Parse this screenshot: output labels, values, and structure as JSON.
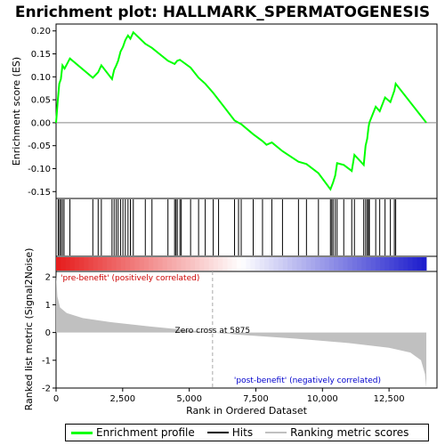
{
  "chart_data": {
    "type": "line",
    "title": "Enrichment plot: HALLMARK_SPERMATOGENESIS",
    "es_panel": {
      "ylabel": "Enrichment score (ES)",
      "ylim": [
        -0.165,
        0.215
      ],
      "yticks": [
        -0.15,
        -0.1,
        -0.05,
        0.0,
        0.05,
        0.1,
        0.15,
        0.2
      ],
      "ytick_labels": [
        "-0.15",
        "-0.10",
        "-0.05",
        "0.00",
        "0.05",
        "0.10",
        "0.15",
        "0.20"
      ],
      "series": [
        {
          "name": "Enrichment profile",
          "color": "#00ff00",
          "x": [
            0,
            60,
            120,
            180,
            240,
            320,
            520,
            1380,
            1580,
            1700,
            2100,
            2180,
            2260,
            2330,
            2420,
            2510,
            2600,
            2700,
            2790,
            2900,
            3350,
            3600,
            4200,
            4450,
            4550,
            4650,
            5050,
            5350,
            5600,
            5900,
            6700,
            6850,
            6950,
            7400,
            7750,
            7900,
            8100,
            8500,
            9100,
            9400,
            9850,
            10300,
            10400,
            10480,
            10550,
            10800,
            11100,
            11200,
            11550,
            11620,
            11680,
            11730,
            11760,
            12000,
            12150,
            12350,
            12550,
            12700,
            12750,
            13900
          ],
          "y": [
            0.0,
            0.045,
            0.085,
            0.095,
            0.125,
            0.118,
            0.14,
            0.098,
            0.11,
            0.125,
            0.095,
            0.115,
            0.125,
            0.135,
            0.155,
            0.165,
            0.18,
            0.19,
            0.183,
            0.197,
            0.172,
            0.163,
            0.135,
            0.128,
            0.135,
            0.137,
            0.12,
            0.098,
            0.085,
            0.065,
            0.005,
            0.0,
            -0.003,
            -0.025,
            -0.04,
            -0.048,
            -0.043,
            -0.062,
            -0.085,
            -0.09,
            -0.11,
            -0.145,
            -0.13,
            -0.115,
            -0.088,
            -0.092,
            -0.105,
            -0.07,
            -0.092,
            -0.05,
            -0.035,
            -0.01,
            0.0,
            0.035,
            0.025,
            0.055,
            0.045,
            0.07,
            0.085,
            0.0
          ]
        }
      ]
    },
    "hits_panel": {
      "legend_name": "Hits",
      "hit_positions": [
        80,
        130,
        180,
        240,
        300,
        520,
        1380,
        1580,
        1700,
        2100,
        2180,
        2260,
        2330,
        2420,
        2510,
        2600,
        2700,
        2790,
        2900,
        3350,
        3600,
        4200,
        4450,
        4500,
        4550,
        4650,
        4700,
        5050,
        5350,
        5600,
        5900,
        6100,
        6700,
        6850,
        6950,
        7400,
        7750,
        8100,
        8500,
        9100,
        9400,
        9850,
        10300,
        10350,
        10400,
        10480,
        10550,
        10800,
        11100,
        11200,
        11550,
        11620,
        11680,
        11730,
        11760,
        12000,
        12150,
        12350,
        12550,
        12700,
        12750
      ]
    },
    "rank_panel": {
      "ylabel": "Ranked list metric (Signal2Noise)",
      "legend_name": "Ranking metric scores",
      "ylim": [
        -2.0,
        2.2
      ],
      "yticks": [
        -2,
        -1,
        0,
        1,
        2
      ],
      "ytick_labels": [
        "-2",
        "-1",
        "0",
        "1",
        "2"
      ],
      "x": [
        0,
        50,
        150,
        400,
        1000,
        2000,
        3500,
        5000,
        5875,
        7000,
        9000,
        11000,
        12500,
        13300,
        13700,
        13850,
        13900
      ],
      "y": [
        2.1,
        1.3,
        0.9,
        0.7,
        0.52,
        0.38,
        0.22,
        0.08,
        0.0,
        -0.09,
        -0.22,
        -0.38,
        -0.55,
        -0.72,
        -1.0,
        -1.5,
        -2.0
      ],
      "zero_cross_label": "Zero cross at 5875",
      "zero_cross_x": 5875,
      "pos_label": "'pre-benefit' (positively correlated)",
      "neg_label": "'post-benefit' (negatively correlated)"
    },
    "xlabel": "Rank in Ordered Dataset",
    "xlim": [
      0,
      14300
    ],
    "xticks": [
      0,
      2500,
      5000,
      7500,
      10000,
      12500
    ],
    "xtick_labels": [
      "0",
      "2,500",
      "5,000",
      "7,500",
      "10,000",
      "12,500"
    ],
    "grid": false,
    "legend_position": "bottom"
  },
  "legend": {
    "enrichment_label": "Enrichment profile",
    "hits_label": "Hits",
    "ranking_label": "Ranking metric scores"
  }
}
